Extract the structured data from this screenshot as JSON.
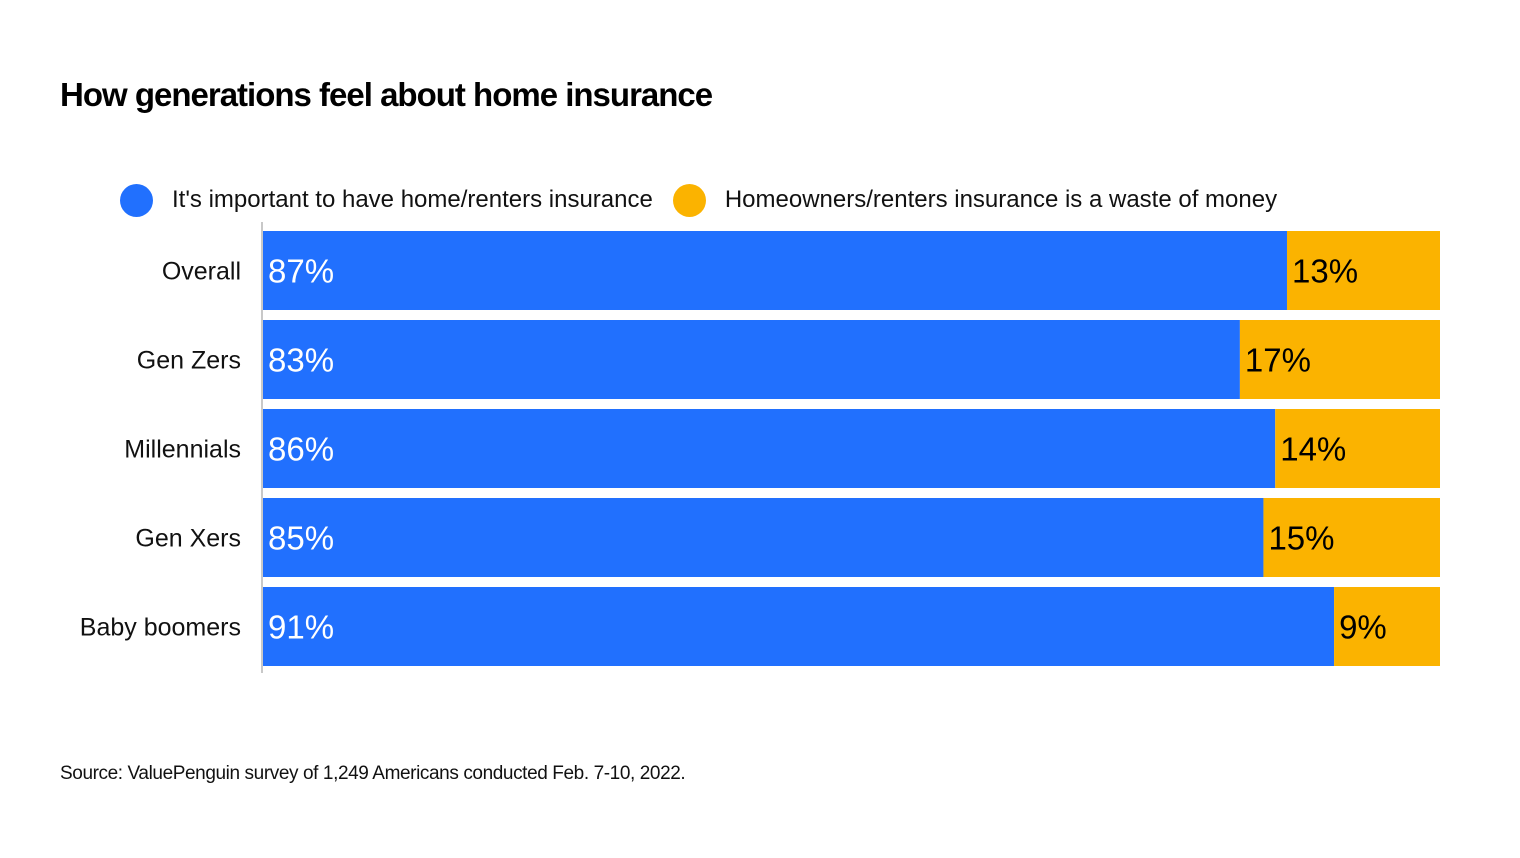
{
  "title": "How generations feel about home insurance",
  "source": "Source: ValuePenguin survey of 1,249 Americans conducted Feb. 7-10, 2022.",
  "chart_data": {
    "type": "bar",
    "orientation": "horizontal",
    "stacked": true,
    "title": "How generations feel about home insurance",
    "categories": [
      "Overall",
      "Gen Zers",
      "Millennials",
      "Gen Xers",
      "Baby boomers"
    ],
    "series": [
      {
        "name": "It's important to have home/renters insurance",
        "color": "#2170fe",
        "values": [
          87,
          83,
          86,
          85,
          91
        ],
        "labels": [
          "87%",
          "83%",
          "86%",
          "85%",
          "91%"
        ]
      },
      {
        "name": "Homeowners/renters insurance is a waste of money",
        "color": "#fbb300",
        "values": [
          13,
          17,
          14,
          15,
          9
        ],
        "labels": [
          "13%",
          "17%",
          "14%",
          "15%",
          "9%"
        ]
      }
    ],
    "xlim": [
      0,
      100
    ],
    "grid": false,
    "legend_position": "top"
  }
}
